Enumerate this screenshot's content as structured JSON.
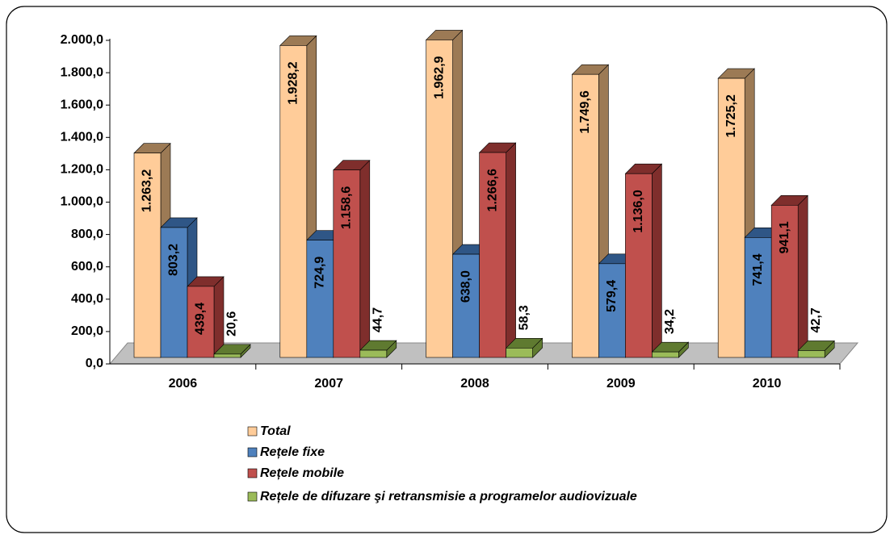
{
  "chart_data": {
    "type": "bar",
    "categories": [
      "2006",
      "2007",
      "2008",
      "2009",
      "2010"
    ],
    "series": [
      {
        "name": "Total",
        "color": "#ffcc99",
        "side": "#9c7a55",
        "values": [
          1263.2,
          1928.2,
          1962.9,
          1749.6,
          1725.2
        ],
        "value_labels": [
          "1.263,2",
          "1.928,2",
          "1.962,9",
          "1.749,6",
          "1.725,2"
        ]
      },
      {
        "name": "Rețele fixe",
        "color": "#4f81bd",
        "side": "#2f5686",
        "values": [
          803.2,
          724.9,
          638.0,
          579.4,
          741.4
        ],
        "value_labels": [
          "803,2",
          "724,9",
          "638,0",
          "579,4",
          "741,4"
        ]
      },
      {
        "name": "Rețele mobile",
        "color": "#c0504d",
        "side": "#7f2e2c",
        "values": [
          439.4,
          1158.6,
          1266.6,
          1136.0,
          941.1
        ],
        "value_labels": [
          "439,4",
          "1.158,6",
          "1.266,6",
          "1.136,0",
          "941,1"
        ]
      },
      {
        "name": "Rețele de difuzare şi retransmisie a programelor audiovizuale",
        "color": "#9bbb59",
        "side": "#5f7a30",
        "values": [
          20.6,
          44.7,
          58.3,
          34.2,
          42.7
        ],
        "value_labels": [
          "20,6",
          "44,7",
          "58,3",
          "34,2",
          "42,7"
        ]
      }
    ],
    "ylim": [
      0,
      2000
    ],
    "yticks": [
      {
        "value": 0,
        "label": "0,0"
      },
      {
        "value": 200,
        "label": "200,0"
      },
      {
        "value": 400,
        "label": "400,0"
      },
      {
        "value": 600,
        "label": "600,0"
      },
      {
        "value": 800,
        "label": "800,0"
      },
      {
        "value": 1000,
        "label": "1.000,0"
      },
      {
        "value": 1200,
        "label": "1.200,0"
      },
      {
        "value": 1400,
        "label": "1.400,0"
      },
      {
        "value": 1600,
        "label": "1.600,0"
      },
      {
        "value": 1800,
        "label": "1.800,0"
      },
      {
        "value": 2000,
        "label": "2.000,0"
      }
    ]
  }
}
